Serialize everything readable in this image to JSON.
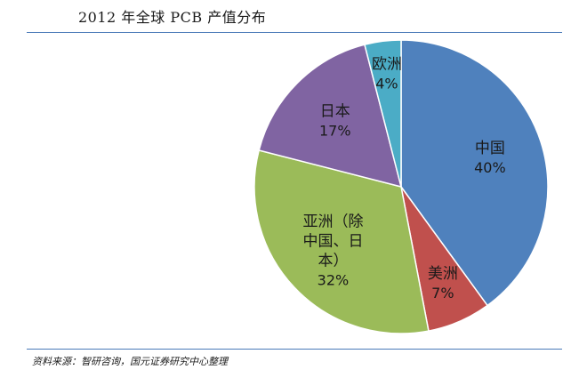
{
  "title": "2012 年全球 PCB 产值分布",
  "source": "资料来源：智研咨询，国元证券研究中心整理",
  "chart_data": {
    "type": "pie",
    "start_angle_deg": 0,
    "direction": "clockwise",
    "slices": [
      {
        "label": "中国",
        "label_lines": [
          "中国"
        ],
        "value": 40,
        "value_label": "40%",
        "color": "#4f81bd"
      },
      {
        "label": "美洲",
        "label_lines": [
          "美洲"
        ],
        "value": 7,
        "value_label": "7%",
        "color": "#c0504d"
      },
      {
        "label": "亚洲（除中国、日本）",
        "label_lines": [
          "亚洲（除",
          "中国、日",
          "本）"
        ],
        "value": 32,
        "value_label": "32%",
        "color": "#9bbb59"
      },
      {
        "label": "日本",
        "label_lines": [
          "日本"
        ],
        "value": 17,
        "value_label": "17%",
        "color": "#8064a2"
      },
      {
        "label": "欧洲",
        "label_lines": [
          "欧洲"
        ],
        "value": 4,
        "value_label": "4%",
        "color": "#4bacc6"
      }
    ]
  }
}
